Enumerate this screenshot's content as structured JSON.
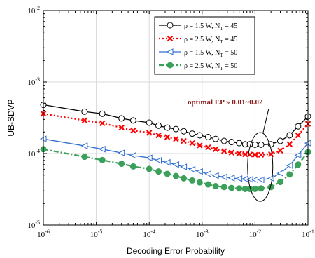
{
  "chart_data": {
    "type": "line",
    "xlabel": "Decoding Error Probability",
    "ylabel": "UB-SDVP",
    "x_scale": "log",
    "y_scale": "log",
    "xlim": [
      1e-06,
      0.1
    ],
    "ylim": [
      1e-05,
      0.01
    ],
    "x_ticks": [
      {
        "value": 1e-06,
        "base": "10",
        "exp": "-6"
      },
      {
        "value": 1e-05,
        "base": "10",
        "exp": "-5"
      },
      {
        "value": 0.0001,
        "base": "10",
        "exp": "-4"
      },
      {
        "value": 0.001,
        "base": "10",
        "exp": "-3"
      },
      {
        "value": 0.01,
        "base": "10",
        "exp": "-2"
      },
      {
        "value": 0.1,
        "base": "10",
        "exp": "-1"
      }
    ],
    "y_ticks": [
      {
        "value": 1e-05,
        "base": "10",
        "exp": "-5"
      },
      {
        "value": 0.0001,
        "base": "10",
        "exp": "-4"
      },
      {
        "value": 0.001,
        "base": "10",
        "exp": "-3"
      },
      {
        "value": 0.01,
        "base": "10",
        "exp": "-2"
      }
    ],
    "legend_position": "top-right",
    "series": [
      {
        "name": "ρ = 1.5 W, N_T = 45",
        "label_main": "ρ = 1.5 W, N",
        "label_sub": "T",
        "label_tail": " = 45",
        "color": "#000000",
        "marker": "circle-open",
        "dash": "none",
        "x": [
          1e-06,
          6e-06,
          1.3e-05,
          3e-05,
          5e-05,
          0.0001,
          0.00015,
          0.00022,
          0.00032,
          0.00045,
          0.00065,
          0.0009,
          0.0013,
          0.0018,
          0.0026,
          0.0036,
          0.005,
          0.0065,
          0.008,
          0.01,
          0.013,
          0.02,
          0.03,
          0.045,
          0.065,
          0.1
        ],
        "y": [
          0.00048,
          0.000385,
          0.00036,
          0.00031,
          0.00029,
          0.00027,
          0.000245,
          0.00023,
          0.00022,
          0.000205,
          0.00019,
          0.00018,
          0.00017,
          0.00016,
          0.00015,
          0.000145,
          0.00014,
          0.000135,
          0.000135,
          0.000133,
          0.000133,
          0.000135,
          0.00015,
          0.00018,
          0.00024,
          0.00033
        ]
      },
      {
        "name": "ρ = 2.5 W, N_T = 45",
        "label_main": "ρ = 2.5 W, N",
        "label_sub": "T",
        "label_tail": " = 45",
        "color": "#ff0000",
        "marker": "cross",
        "dash": "dot",
        "x": [
          1e-06,
          6e-06,
          1.3e-05,
          3e-05,
          5e-05,
          0.0001,
          0.00015,
          0.00022,
          0.00032,
          0.00045,
          0.00065,
          0.0009,
          0.0013,
          0.0018,
          0.0026,
          0.0036,
          0.005,
          0.0065,
          0.008,
          0.01,
          0.013,
          0.02,
          0.03,
          0.045,
          0.065,
          0.1
        ],
        "y": [
          0.00036,
          0.00029,
          0.000265,
          0.00023,
          0.00021,
          0.000195,
          0.00018,
          0.00017,
          0.00016,
          0.00015,
          0.00014,
          0.00013,
          0.000122,
          0.000115,
          0.000108,
          0.000103,
          0.0001,
          9.8e-05,
          9.7e-05,
          9.6e-05,
          9.6e-05,
          9.8e-05,
          0.00011,
          0.000135,
          0.00018,
          0.00026
        ]
      },
      {
        "name": "ρ = 1.5 W, N_T = 50",
        "label_main": "ρ = 1.5 W, N",
        "label_sub": "T",
        "label_tail": " = 50",
        "color": "#2e6fd1",
        "marker": "triangle-left",
        "dash": "none",
        "x": [
          1e-06,
          6e-06,
          1.3e-05,
          3e-05,
          5e-05,
          0.0001,
          0.00015,
          0.00022,
          0.00032,
          0.00045,
          0.00065,
          0.0009,
          0.0013,
          0.0018,
          0.0026,
          0.0036,
          0.005,
          0.0065,
          0.008,
          0.01,
          0.013,
          0.02,
          0.03,
          0.045,
          0.065,
          0.1
        ],
        "y": [
          0.00016,
          0.000128,
          0.000115,
          0.000102,
          9.4e-05,
          8.7e-05,
          8e-05,
          7.5e-05,
          7e-05,
          6.5e-05,
          6e-05,
          5.6e-05,
          5.2e-05,
          4.9e-05,
          4.7e-05,
          4.55e-05,
          4.45e-05,
          4.4e-05,
          4.35e-05,
          4.3e-05,
          4.3e-05,
          4.5e-05,
          5.3e-05,
          6.8e-05,
          9.5e-05,
          0.00014
        ]
      },
      {
        "name": "ρ = 2.5 W, N_T = 50",
        "label_main": "ρ = 2.5 W, N",
        "label_sub": "T",
        "label_tail": " = 50",
        "color": "#3aa05a",
        "marker": "circle-filled",
        "dash": "dashdot",
        "x": [
          1e-06,
          6e-06,
          1.3e-05,
          3e-05,
          5e-05,
          0.0001,
          0.00015,
          0.00022,
          0.00032,
          0.00045,
          0.00065,
          0.0009,
          0.0013,
          0.0018,
          0.0026,
          0.0036,
          0.005,
          0.0065,
          0.008,
          0.01,
          0.013,
          0.02,
          0.03,
          0.045,
          0.065,
          0.1
        ],
        "y": [
          0.000115,
          9e-05,
          8.1e-05,
          7.2e-05,
          6.6e-05,
          6.1e-05,
          5.6e-05,
          5.2e-05,
          4.85e-05,
          4.5e-05,
          4.2e-05,
          3.95e-05,
          3.7e-05,
          3.5e-05,
          3.4e-05,
          3.3e-05,
          3.25e-05,
          3.2e-05,
          3.2e-05,
          3.2e-05,
          3.25e-05,
          3.4e-05,
          4e-05,
          5.1e-05,
          7e-05,
          0.000105
        ]
      }
    ],
    "annotation": {
      "text": "optimal EP » 0.01~0.02",
      "ellipse_x": 0.0125,
      "ellipse_y": 6.5e-05
    }
  }
}
